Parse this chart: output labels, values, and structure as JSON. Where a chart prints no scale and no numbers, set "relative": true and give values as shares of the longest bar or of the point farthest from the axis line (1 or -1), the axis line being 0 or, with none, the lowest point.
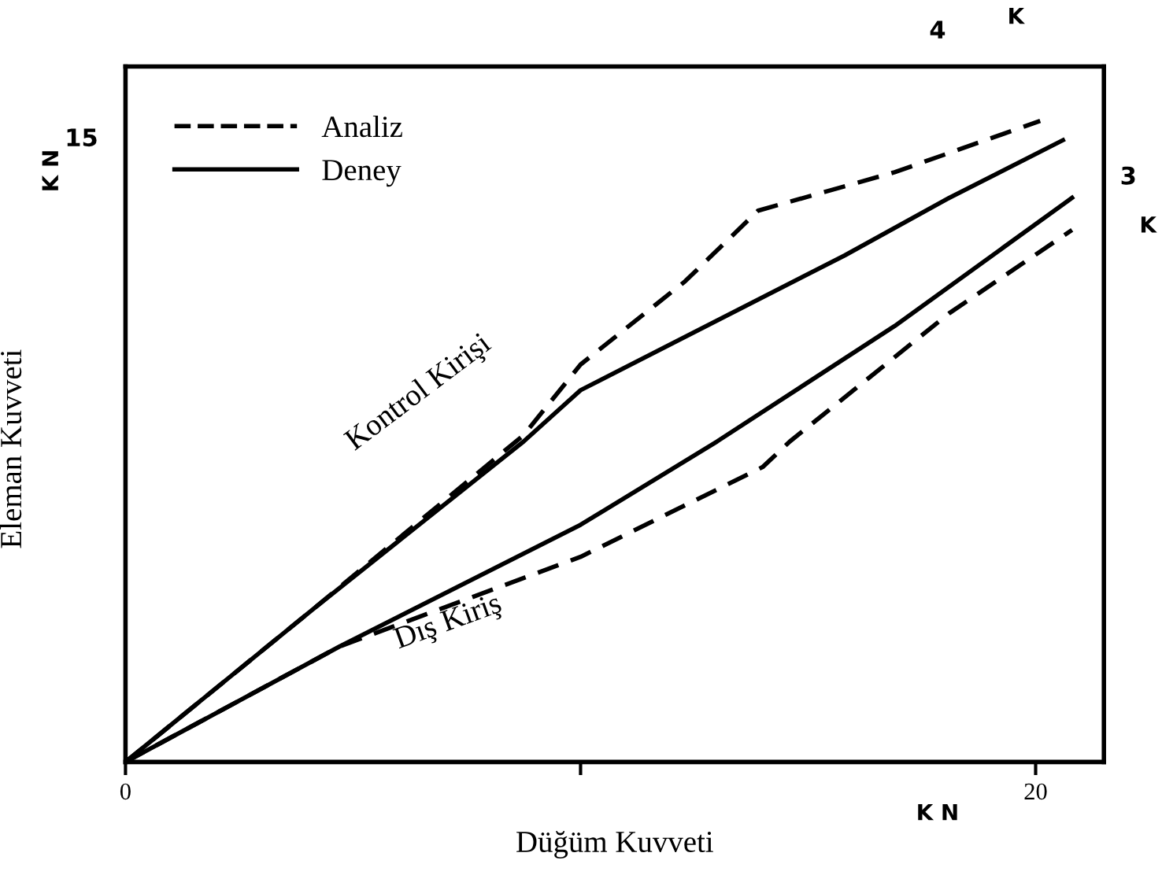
{
  "chart_data": {
    "type": "line",
    "relative": true,
    "xlabel": "Düğüm Kuvveti",
    "ylabel": "Eleman Kuvveti",
    "xlim": [
      0,
      21.5
    ],
    "xticks": [
      0,
      {
        "value": 10,
        "label": null
      },
      20
    ],
    "legend": "top left",
    "grid": false,
    "marker": "none",
    "series": [
      {
        "name": "Analiz",
        "color": "#000000",
        "line_style": "dashed",
        "x": [
          0,
          4.15,
          8.75,
          10,
          12.3,
          13.9,
          16.9,
          20.1
        ],
        "values": [
          0,
          0.24,
          0.51,
          0.62,
          0.75,
          0.86,
          0.92,
          1
        ]
      },
      {
        "name": "Deney",
        "color": "#000000",
        "line_style": "solid",
        "x": [
          0,
          4.15,
          8.75,
          10,
          15.8,
          18.1,
          20.6
        ],
        "values": [
          0,
          0.24,
          0.5,
          0.58,
          0.79,
          0.88,
          0.97
        ]
      },
      {
        "color": "#000000",
        "line_style": "dashed",
        "x": [
          0,
          4.7,
          10,
          14.0,
          14.6,
          18.1,
          20.8
        ],
        "values": [
          0,
          0.18,
          0.32,
          0.46,
          0.5,
          0.7,
          0.83
        ]
      },
      {
        "color": "#000000",
        "line_style": "solid",
        "x": [
          0,
          4.7,
          10,
          13.0,
          16.9,
          20.8
        ],
        "values": [
          0,
          0.18,
          0.37,
          0.5,
          0.68,
          0.88
        ]
      }
    ],
    "annotations": [
      "Kontrol Kirişi",
      "Dış Kiriş",
      "K N",
      "K N",
      "15",
      "4",
      "K",
      "3",
      "K"
    ]
  }
}
